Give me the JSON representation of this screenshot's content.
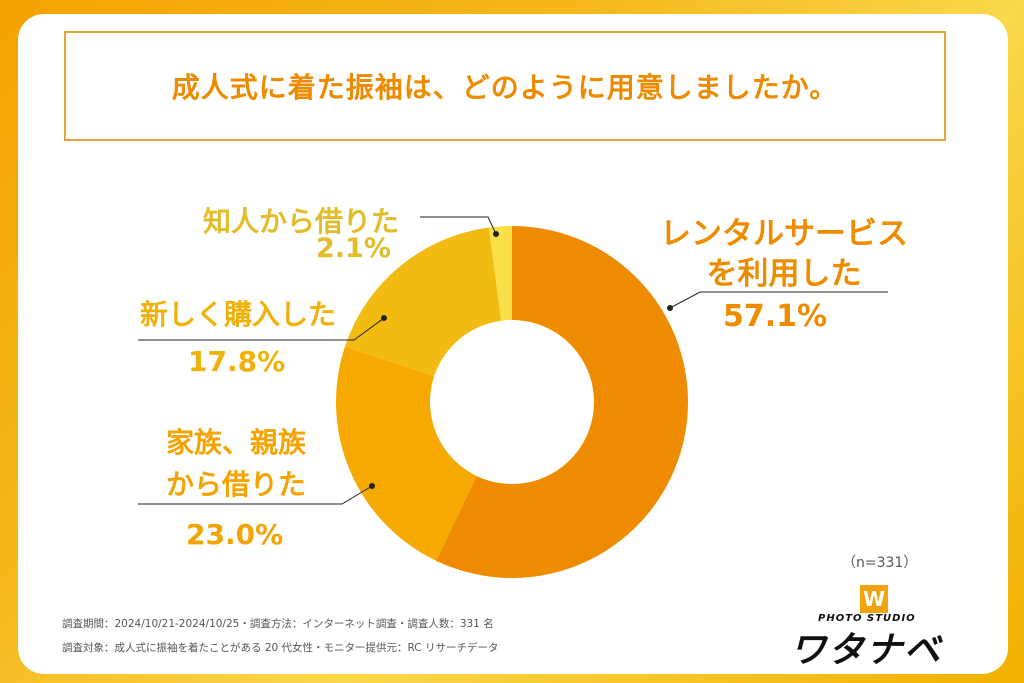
{
  "title": "成人式に着た振袖は、どのように用意しましたか。",
  "chart_data": {
    "type": "pie",
    "donut": true,
    "categories": [
      "レンタルサービスを利用した",
      "家族、親族から借りた",
      "新しく購入した",
      "知人から借りた"
    ],
    "values": [
      57.1,
      23.0,
      17.8,
      2.1
    ],
    "value_labels": [
      "57.1%",
      "23.0%",
      "17.8%",
      "2.1%"
    ],
    "colors": [
      "#ef8b00",
      "#f6a900",
      "#f2bb12",
      "#f9df48"
    ]
  },
  "labels": {
    "rental_line1": "レンタルサービス",
    "rental_line2": "を利用した",
    "family_line1": "家族、親族",
    "family_line2": "から借りた",
    "buy": "新しく購入した",
    "acquaintance": "知人から借りた"
  },
  "sample_size": "（n=331）",
  "footer": {
    "line1": "調査期間：2024/10/21-2024/10/25・調査方法：インターネット調査・調査人数：331 名",
    "line2": "調査対象：成人式に振袖を着たことがある 20 代女性・モニター提供元：RC リサーチデータ"
  },
  "logo": {
    "mark": "W",
    "sub": "PHOTO STUDIO",
    "main": "ワタナベ"
  }
}
